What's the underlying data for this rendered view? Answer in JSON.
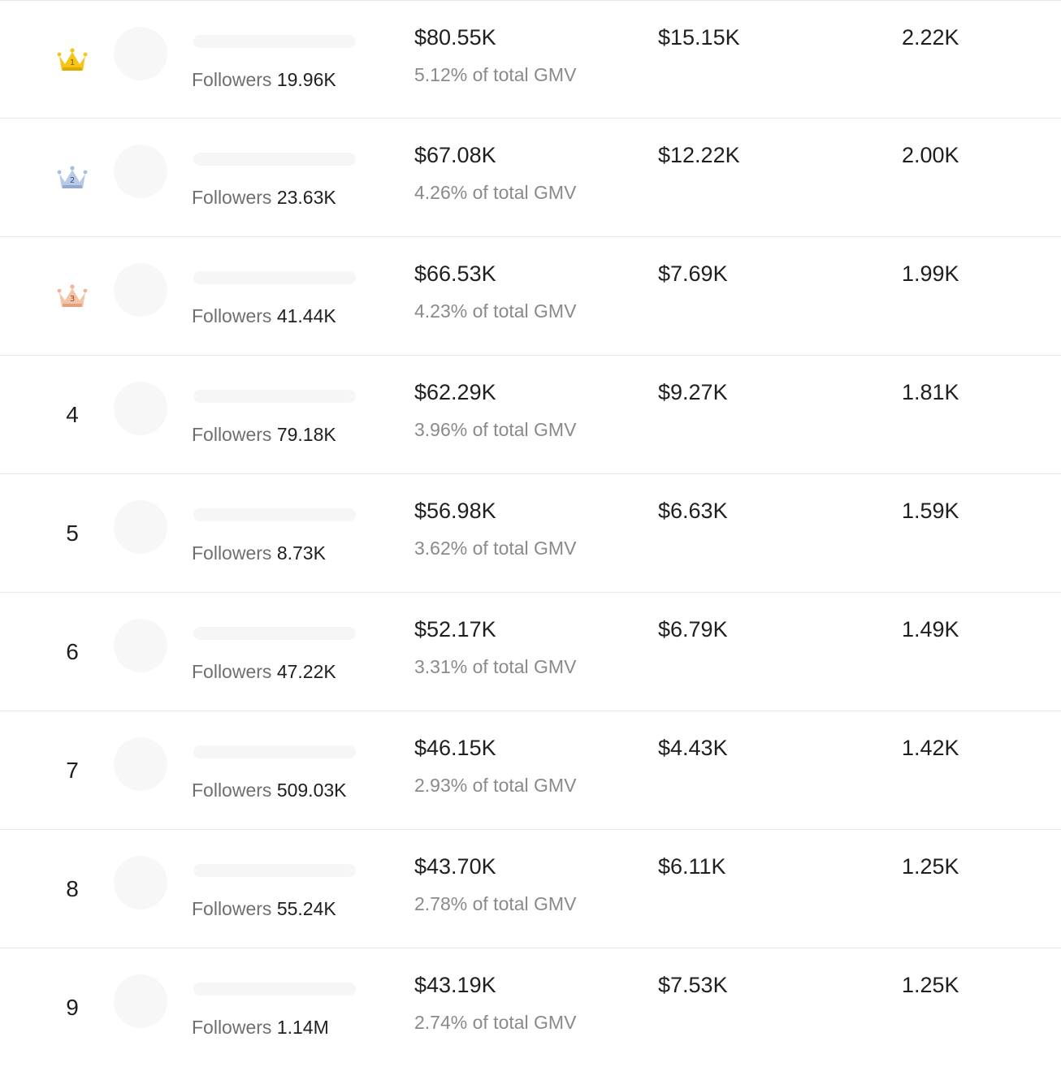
{
  "rows": [
    {
      "rank": "1",
      "crown": "gold-crown-icon",
      "crown_color": "#f5c518",
      "followers_label": "Followers",
      "followers": "19.96K",
      "gmv": "$80.55K",
      "gmv_pct": "5.12% of total GMV",
      "col3": "$15.15K",
      "col4": "2.22K"
    },
    {
      "rank": "2",
      "crown": "silver-crown-icon",
      "crown_color": "#a9bde0",
      "followers_label": "Followers",
      "followers": "23.63K",
      "gmv": "$67.08K",
      "gmv_pct": "4.26% of total GMV",
      "col3": "$12.22K",
      "col4": "2.00K"
    },
    {
      "rank": "3",
      "crown": "bronze-crown-icon",
      "crown_color": "#f0b597",
      "followers_label": "Followers",
      "followers": "41.44K",
      "gmv": "$66.53K",
      "gmv_pct": "4.23% of total GMV",
      "col3": "$7.69K",
      "col4": "1.99K"
    },
    {
      "rank": "4",
      "followers_label": "Followers",
      "followers": "79.18K",
      "gmv": "$62.29K",
      "gmv_pct": "3.96% of total GMV",
      "col3": "$9.27K",
      "col4": "1.81K"
    },
    {
      "rank": "5",
      "followers_label": "Followers",
      "followers": "8.73K",
      "gmv": "$56.98K",
      "gmv_pct": "3.62% of total GMV",
      "col3": "$6.63K",
      "col4": "1.59K"
    },
    {
      "rank": "6",
      "followers_label": "Followers",
      "followers": "47.22K",
      "gmv": "$52.17K",
      "gmv_pct": "3.31% of total GMV",
      "col3": "$6.79K",
      "col4": "1.49K"
    },
    {
      "rank": "7",
      "followers_label": "Followers",
      "followers": "509.03K",
      "gmv": "$46.15K",
      "gmv_pct": "2.93% of total GMV",
      "col3": "$4.43K",
      "col4": "1.42K"
    },
    {
      "rank": "8",
      "followers_label": "Followers",
      "followers": "55.24K",
      "gmv": "$43.70K",
      "gmv_pct": "2.78% of total GMV",
      "col3": "$6.11K",
      "col4": "1.25K"
    },
    {
      "rank": "9",
      "followers_label": "Followers",
      "followers": "1.14M",
      "gmv": "$43.19K",
      "gmv_pct": "2.74% of total GMV",
      "col3": "$7.53K",
      "col4": "1.25K"
    }
  ]
}
